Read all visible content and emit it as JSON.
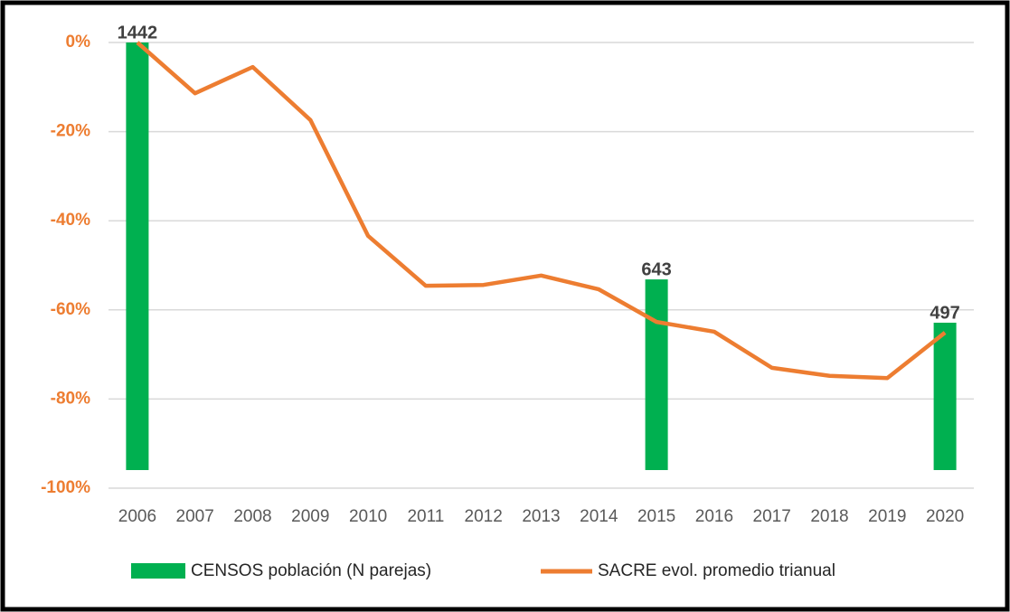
{
  "chart_data": {
    "type": "bar-line",
    "categories": [
      "2006",
      "2007",
      "2008",
      "2009",
      "2010",
      "2011",
      "2012",
      "2013",
      "2014",
      "2015",
      "2016",
      "2017",
      "2018",
      "2019",
      "2020"
    ],
    "series": [
      {
        "name": "CENSOS población (N parejas)",
        "type": "bar",
        "axis": "y2",
        "color": "#00b050",
        "values": [
          1442,
          null,
          null,
          null,
          null,
          null,
          null,
          null,
          null,
          643,
          null,
          null,
          null,
          null,
          497
        ]
      },
      {
        "name": "SACRE evol. promedio trianual",
        "type": "line",
        "color": "#ed7d31",
        "values": [
          0,
          -11.4,
          -5.5,
          -17.4,
          -43.4,
          -54.6,
          -54.4,
          -52.3,
          -55.4,
          -62.7,
          -64.9,
          -73,
          -74.8,
          -75.3,
          -65.1
        ]
      }
    ],
    "ylim": [
      -100,
      0
    ],
    "yticks": [
      {
        "value": 0,
        "label": "0%"
      },
      {
        "value": -20,
        "label": "-20%"
      },
      {
        "value": -40,
        "label": "-40%"
      },
      {
        "value": -60,
        "label": "-60%"
      },
      {
        "value": -80,
        "label": "-80%"
      },
      {
        "value": -100,
        "label": "-100%"
      }
    ],
    "y2lim": [
      -61,
      1442
    ],
    "grid": true
  }
}
